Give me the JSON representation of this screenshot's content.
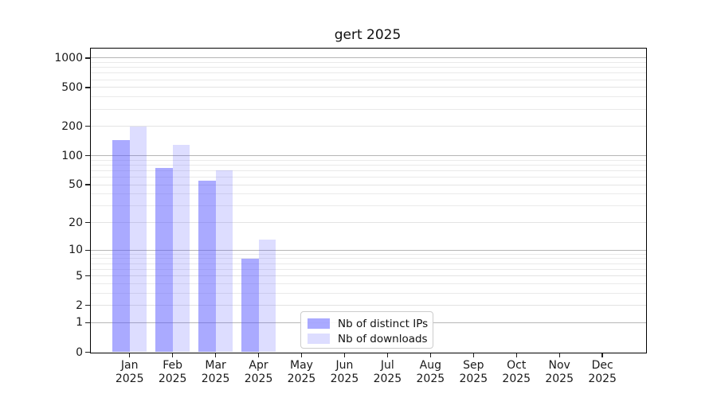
{
  "title": "gert 2025",
  "chart_data": {
    "type": "bar",
    "title": "gert 2025",
    "subtitle": "",
    "xlabel": "",
    "ylabel": "",
    "y_scale": "log1p",
    "ylim": [
      0,
      1000
    ],
    "y_ticks": [
      0,
      1,
      2,
      5,
      10,
      20,
      50,
      100,
      200,
      500,
      1000
    ],
    "grid": true,
    "legend_position": "lower-center-inside",
    "categories": [
      "Jan 2025",
      "Feb 2025",
      "Mar 2025",
      "Apr 2025",
      "May 2025",
      "Jun 2025",
      "Jul 2025",
      "Aug 2025",
      "Sep 2025",
      "Oct 2025",
      "Nov 2025",
      "Dec 2025"
    ],
    "series": [
      {
        "name": "Nb of distinct IPs",
        "color": "rgba(85,85,255,0.5)",
        "color_hex_on_white": "#aaaaff",
        "values": [
          145,
          74,
          55,
          8,
          0,
          0,
          0,
          0,
          0,
          0,
          0,
          0
        ]
      },
      {
        "name": "Nb of downloads",
        "color": "rgba(85,85,255,0.2)",
        "color_hex_on_white": "#ddddff",
        "values": [
          200,
          130,
          70,
          13,
          0,
          0,
          0,
          0,
          0,
          0,
          0,
          0
        ]
      }
    ]
  },
  "legend": {
    "items": [
      {
        "label": "Nb of distinct IPs"
      },
      {
        "label": "Nb of downloads"
      }
    ]
  }
}
